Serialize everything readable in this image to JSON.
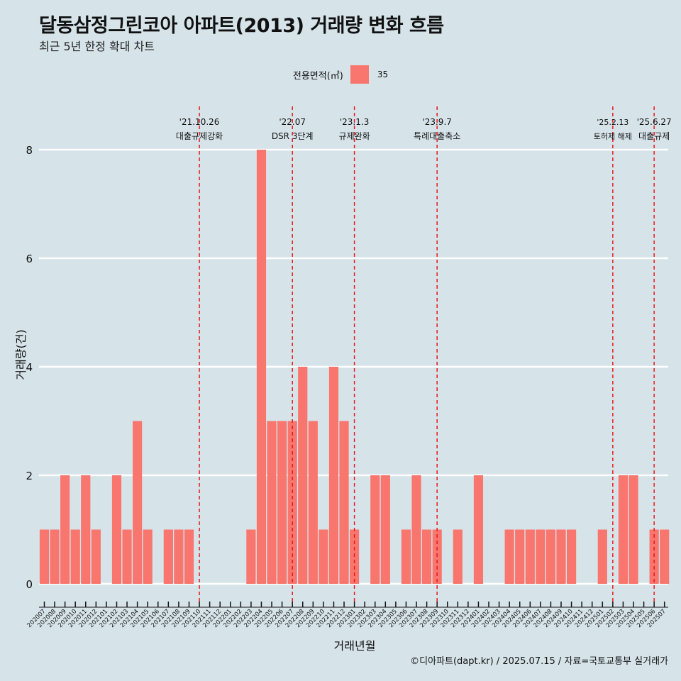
{
  "header": {
    "title": "달동삼정그린코아 아파트(2013) 거래량 변화 흐름",
    "subtitle": "최근 5년 한정 확대 차트"
  },
  "legend": {
    "title": "전용면적(㎡)",
    "items": [
      "35"
    ]
  },
  "footer": {
    "caption": "©디아파트(dapt.kr) / 2025.07.15 / 자료=국토교통부 실거래가"
  },
  "colors": {
    "bar": "#f8766d",
    "background": "#d6e4ea",
    "event_line": "#e8191a",
    "grid": "#ffffff"
  },
  "chart_data": {
    "type": "bar",
    "title": "달동삼정그린코아 아파트(2013) 거래량 변화 흐름",
    "subtitle": "최근 5년 한정 확대 차트",
    "xlabel": "거래년월",
    "ylabel": "거래량(건)",
    "ylim": [
      0,
      8
    ],
    "yticks": [
      0,
      2,
      4,
      6,
      8
    ],
    "grid": true,
    "legend_position": "top",
    "categories": [
      "202007",
      "202008",
      "202009",
      "202010",
      "202011",
      "202012",
      "202101",
      "202102",
      "202103",
      "202104",
      "202105",
      "202106",
      "202107",
      "202108",
      "202109",
      "202110",
      "202111",
      "202112",
      "202201",
      "202202",
      "202203",
      "202204",
      "202205",
      "202206",
      "202207",
      "202208",
      "202209",
      "202210",
      "202211",
      "202212",
      "202301",
      "202302",
      "202303",
      "202304",
      "202305",
      "202306",
      "202307",
      "202308",
      "202309",
      "202310",
      "202311",
      "202312",
      "202401",
      "202402",
      "202403",
      "202404",
      "202405",
      "202406",
      "202407",
      "202408",
      "202409",
      "202410",
      "202411",
      "202412",
      "202501",
      "202502",
      "202503",
      "202504",
      "202505",
      "202506",
      "202507"
    ],
    "series": [
      {
        "name": "35",
        "values": [
          1,
          1,
          2,
          1,
          2,
          1,
          0,
          2,
          1,
          3,
          1,
          0,
          1,
          1,
          1,
          0,
          0,
          0,
          0,
          0,
          1,
          8,
          3,
          3,
          3,
          4,
          3,
          1,
          4,
          3,
          1,
          0,
          2,
          2,
          0,
          1,
          2,
          1,
          1,
          0,
          1,
          0,
          2,
          0,
          0,
          1,
          1,
          1,
          1,
          1,
          1,
          1,
          0,
          0,
          1,
          0,
          2,
          2,
          0,
          1,
          1
        ]
      }
    ],
    "annotations": [
      {
        "at": "202110",
        "date": "'21.10.26",
        "label": "대출규제강화"
      },
      {
        "at": "202207",
        "date": "'22.07",
        "label": "DSR 3단계"
      },
      {
        "at": "202301",
        "date": "'23.1.3",
        "label": "규제완화"
      },
      {
        "at": "202309",
        "date": "'23.9.7",
        "label": "특례대출축소"
      },
      {
        "at": "202502",
        "date": "'25.2.13",
        "label": "토허제 해제"
      },
      {
        "at": "202506",
        "date": "'25.6.27",
        "label": "대출규제"
      }
    ]
  }
}
